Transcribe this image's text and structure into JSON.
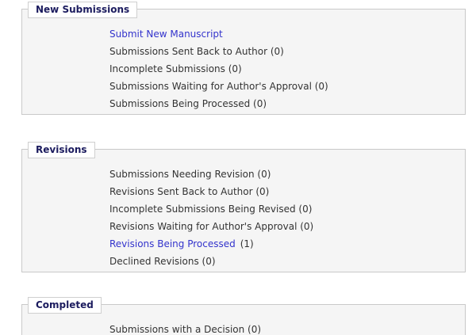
{
  "colors": {
    "page_background": "#ffffff",
    "panel_background": "#f5f5f5",
    "panel_border": "#c9c9c9",
    "legend_text": "#1b1b5e",
    "link_blue": "#3333cc",
    "static_text": "#333333"
  },
  "sections": [
    {
      "legend": "New Submissions",
      "items": [
        {
          "text": "Submit New Manuscript",
          "link": true
        },
        {
          "text": "Submissions Sent Back to Author (0)",
          "link": false
        },
        {
          "text": "Incomplete Submissions (0)",
          "link": false
        },
        {
          "text": "Submissions Waiting for Author's Approval (0)",
          "link": false
        },
        {
          "text": "Submissions Being Processed (0)",
          "link": false
        }
      ]
    },
    {
      "legend": "Revisions",
      "items": [
        {
          "text": "Submissions Needing Revision (0)",
          "link": false
        },
        {
          "text": "Revisions Sent Back to Author (0)",
          "link": false
        },
        {
          "text": "Incomplete Submissions Being Revised (0)",
          "link": false
        },
        {
          "text": "Revisions Waiting for Author's Approval (0)",
          "link": false
        },
        {
          "text": "Revisions Being Processed",
          "count": "(1)",
          "link": true
        },
        {
          "text": "Declined Revisions (0)",
          "link": false
        }
      ]
    },
    {
      "legend": "Completed",
      "items": [
        {
          "text": "Submissions with a Decision (0)",
          "link": false
        }
      ]
    }
  ]
}
